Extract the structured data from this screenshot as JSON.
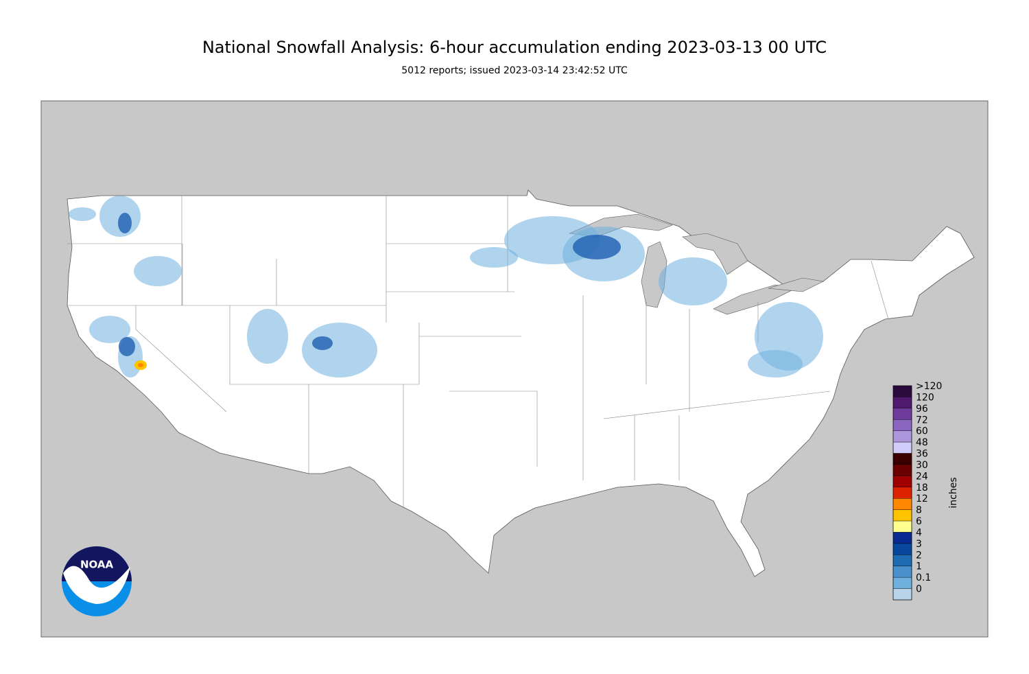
{
  "header": {
    "title": "National Snowfall Analysis: 6-hour accumulation ending 2023-03-13 00 UTC",
    "subtitle": "5012 reports; issued 2023-03-14 23:42:52 UTC"
  },
  "legend": {
    "unit": "inches",
    "entries": [
      {
        "label": ">120",
        "color": "#2d0a3e"
      },
      {
        "label": "120",
        "color": "#4f1a6e"
      },
      {
        "label": "96",
        "color": "#6e3c9c"
      },
      {
        "label": "72",
        "color": "#8a66c0"
      },
      {
        "label": "60",
        "color": "#ad96dc"
      },
      {
        "label": "48",
        "color": "#d2ccfa"
      },
      {
        "label": "36",
        "color": "#3a0000"
      },
      {
        "label": "30",
        "color": "#6a0000"
      },
      {
        "label": "24",
        "color": "#a00000"
      },
      {
        "label": "18",
        "color": "#dd2200"
      },
      {
        "label": "12",
        "color": "#ff8800"
      },
      {
        "label": "8",
        "color": "#ffc400"
      },
      {
        "label": "6",
        "color": "#ffff90"
      },
      {
        "label": "4",
        "color": "#082a90"
      },
      {
        "label": "3",
        "color": "#08479e"
      },
      {
        "label": "2",
        "color": "#1f6cb4"
      },
      {
        "label": "1",
        "color": "#4a90cc"
      },
      {
        "label": "0.1",
        "color": "#6fb0de"
      },
      {
        "label": "0",
        "color": "#b8d4ea"
      }
    ]
  },
  "logo": {
    "text": "NOAA"
  }
}
